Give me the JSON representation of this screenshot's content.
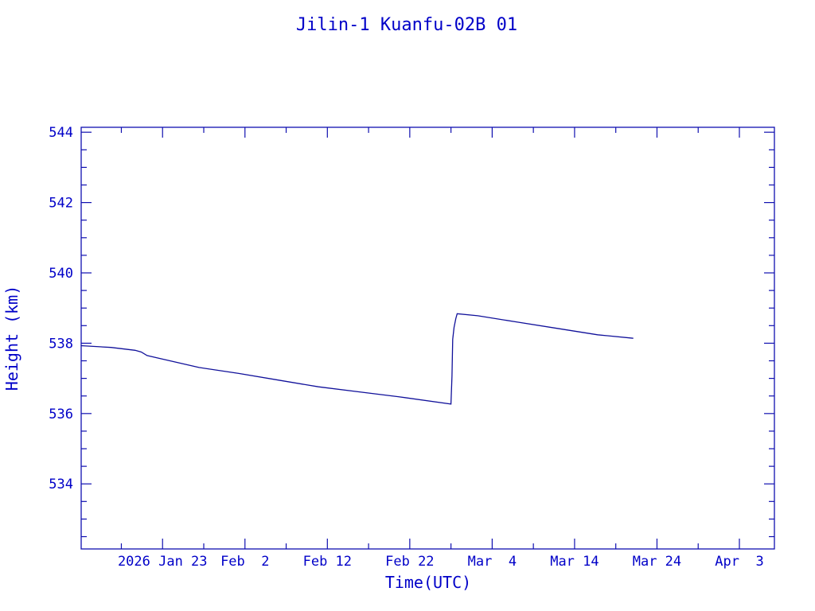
{
  "chart_data": {
    "type": "line",
    "title": "Jilin-1 Kuanfu-02B 01",
    "xlabel": "Time(UTC)",
    "ylabel": "Height (km)",
    "xlim": [
      "2026-01-13T03:00",
      "2026-04-07T06:00"
    ],
    "ylim": [
      532.15,
      544.14
    ],
    "x_ticks": [
      {
        "date": "2026-01-23",
        "label": "2026 Jan 23"
      },
      {
        "date": "2026-02-02",
        "label": "Feb  2"
      },
      {
        "date": "2026-02-12",
        "label": "Feb 12"
      },
      {
        "date": "2026-02-22",
        "label": "Feb 22"
      },
      {
        "date": "2026-03-04",
        "label": "Mar  4"
      },
      {
        "date": "2026-03-14",
        "label": "Mar 14"
      },
      {
        "date": "2026-03-24",
        "label": "Mar 24"
      },
      {
        "date": "2026-04-03",
        "label": "Apr  3"
      }
    ],
    "x_minor_tick_days": 5,
    "y_ticks": [
      534,
      536,
      538,
      540,
      542,
      544
    ],
    "y_minor_step": 0.5,
    "grid": false,
    "colors": {
      "line": "#10109a",
      "axes": "#1010b0",
      "text": "#0000c8"
    },
    "series": [
      {
        "x": [
          "2026-01-13T02:00",
          "2026-01-16T18:00",
          "2026-01-19T16:00",
          "2026-01-20T10:00",
          "2026-01-21T03:00",
          "2026-01-22T14:00",
          "2026-01-27T10:00",
          "2026-02-01T06:00",
          "2026-02-06T02:00",
          "2026-02-10T22:00",
          "2026-02-15T17:00",
          "2026-02-20T14:00",
          "2026-02-27T00:00",
          "2026-02-27T03:00",
          "2026-02-27T05:00",
          "2026-02-27T09:00",
          "2026-02-27T14:00",
          "2026-02-27T18:00",
          "2026-03-02T06:00",
          "2026-03-07T02:00",
          "2026-03-11T22:00",
          "2026-03-16T19:00",
          "2026-03-21T03:00"
        ],
        "y": [
          537.93,
          537.88,
          537.8,
          537.75,
          537.65,
          537.57,
          537.31,
          537.14,
          536.95,
          536.76,
          536.62,
          536.48,
          536.27,
          537.07,
          538.11,
          538.45,
          538.7,
          538.84,
          538.78,
          538.6,
          538.42,
          538.24,
          538.14
        ]
      }
    ]
  }
}
